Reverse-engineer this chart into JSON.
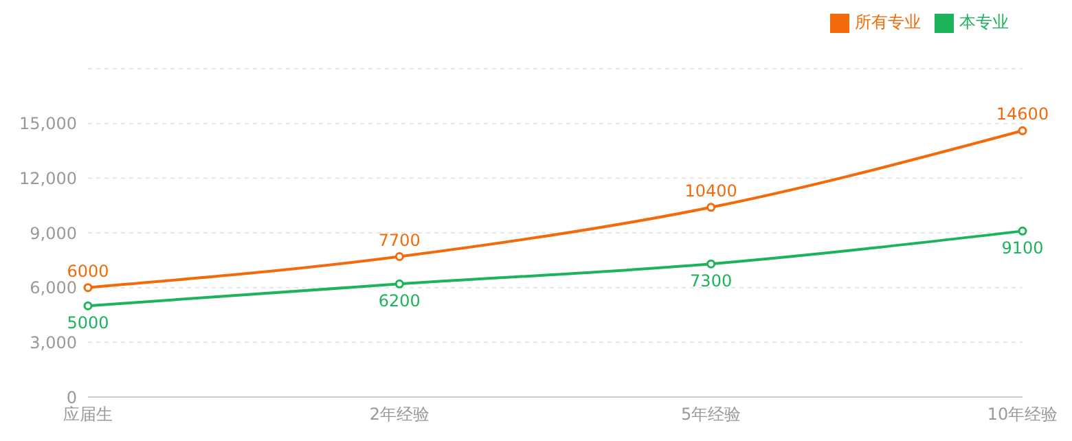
{
  "chart_data": {
    "type": "line",
    "categories": [
      "应届生",
      "2年经验",
      "5年经验",
      "10年经验"
    ],
    "series": [
      {
        "name": "本专业",
        "color": "#1db35a",
        "values": [
          5000,
          6200,
          7300,
          9100
        ]
      },
      {
        "name": "所有专业",
        "color": "#f26a0a",
        "values": [
          6000,
          7700,
          10400,
          14600
        ]
      }
    ],
    "ylim": [
      0,
      18000
    ],
    "yticks": [
      0,
      {
        "value": 3000,
        "label": "3,000"
      },
      {
        "value": 6000,
        "label": "6,000"
      },
      {
        "value": 9000,
        "label": "9,000"
      },
      {
        "value": 12000,
        "label": "12,000"
      },
      {
        "value": 15000,
        "label": "15,000"
      }
    ],
    "grid": "y",
    "legend": "top right",
    "marker": "circle",
    "line_style": "solid",
    "data_labels": true
  }
}
